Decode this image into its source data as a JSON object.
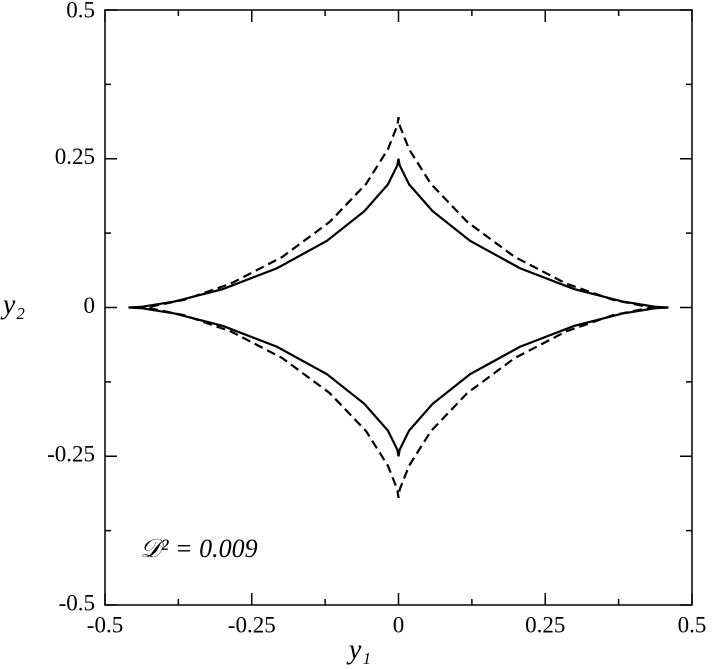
{
  "chart_data": {
    "type": "line",
    "xlabel": "y₁",
    "ylabel": "y₂",
    "annotation": "𝒟² = 0.009",
    "xlim": [
      -0.5,
      0.5
    ],
    "ylim": [
      -0.5,
      0.5
    ],
    "xticks": [
      -0.5,
      -0.25,
      0,
      0.25,
      0.5
    ],
    "yticks": [
      -0.5,
      -0.25,
      0,
      0.25,
      0.5
    ],
    "xminorticks": [
      -0.375,
      -0.125,
      0.125,
      0.375
    ],
    "yminorticks": [
      -0.375,
      -0.125,
      0.125,
      0.375
    ],
    "series": [
      {
        "color": "#000000",
        "dash": "solid",
        "x": [
          0.46,
          0.439,
          0.382,
          0.299,
          0.207,
          0.122,
          0.058,
          0.018,
          0.002,
          0,
          -0.002,
          -0.018,
          -0.058,
          -0.122,
          -0.207,
          -0.299,
          -0.382,
          -0.439,
          -0.46,
          -0.439,
          -0.382,
          -0.299,
          -0.207,
          -0.122,
          -0.058,
          -0.018,
          -0.002,
          0,
          0.002,
          0.018,
          0.058,
          0.122,
          0.207,
          0.299,
          0.382,
          0.439,
          0.46
        ],
        "y": [
          0,
          0.001,
          0.01,
          0.031,
          0.066,
          0.112,
          0.162,
          0.207,
          0.239,
          0.25,
          0.239,
          0.207,
          0.162,
          0.112,
          0.066,
          0.031,
          0.01,
          0.001,
          0,
          -0.001,
          -0.01,
          -0.031,
          -0.066,
          -0.112,
          -0.162,
          -0.207,
          -0.239,
          -0.25,
          -0.239,
          -0.207,
          -0.162,
          -0.112,
          -0.066,
          -0.031,
          -0.01,
          -0.001,
          0
        ]
      },
      {
        "color": "#000000",
        "dash": "dashed",
        "x": [
          0.44,
          0.42,
          0.365,
          0.286,
          0.198,
          0.117,
          0.055,
          0.018,
          0.002,
          0,
          -0.002,
          -0.018,
          -0.055,
          -0.117,
          -0.198,
          -0.286,
          -0.365,
          -0.42,
          -0.44,
          -0.42,
          -0.365,
          -0.286,
          -0.198,
          -0.117,
          -0.055,
          -0.018,
          -0.002,
          0,
          0.002,
          0.018,
          0.055,
          0.117,
          0.198,
          0.286,
          0.365,
          0.42,
          0.44
        ],
        "y": [
          0,
          0.002,
          0.013,
          0.04,
          0.085,
          0.144,
          0.208,
          0.266,
          0.306,
          0.32,
          0.306,
          0.266,
          0.208,
          0.144,
          0.085,
          0.04,
          0.013,
          0.002,
          0,
          -0.002,
          -0.013,
          -0.04,
          -0.085,
          -0.144,
          -0.208,
          -0.266,
          -0.306,
          -0.32,
          -0.306,
          -0.266,
          -0.208,
          -0.144,
          -0.085,
          -0.04,
          -0.013,
          -0.002,
          0
        ]
      }
    ]
  }
}
